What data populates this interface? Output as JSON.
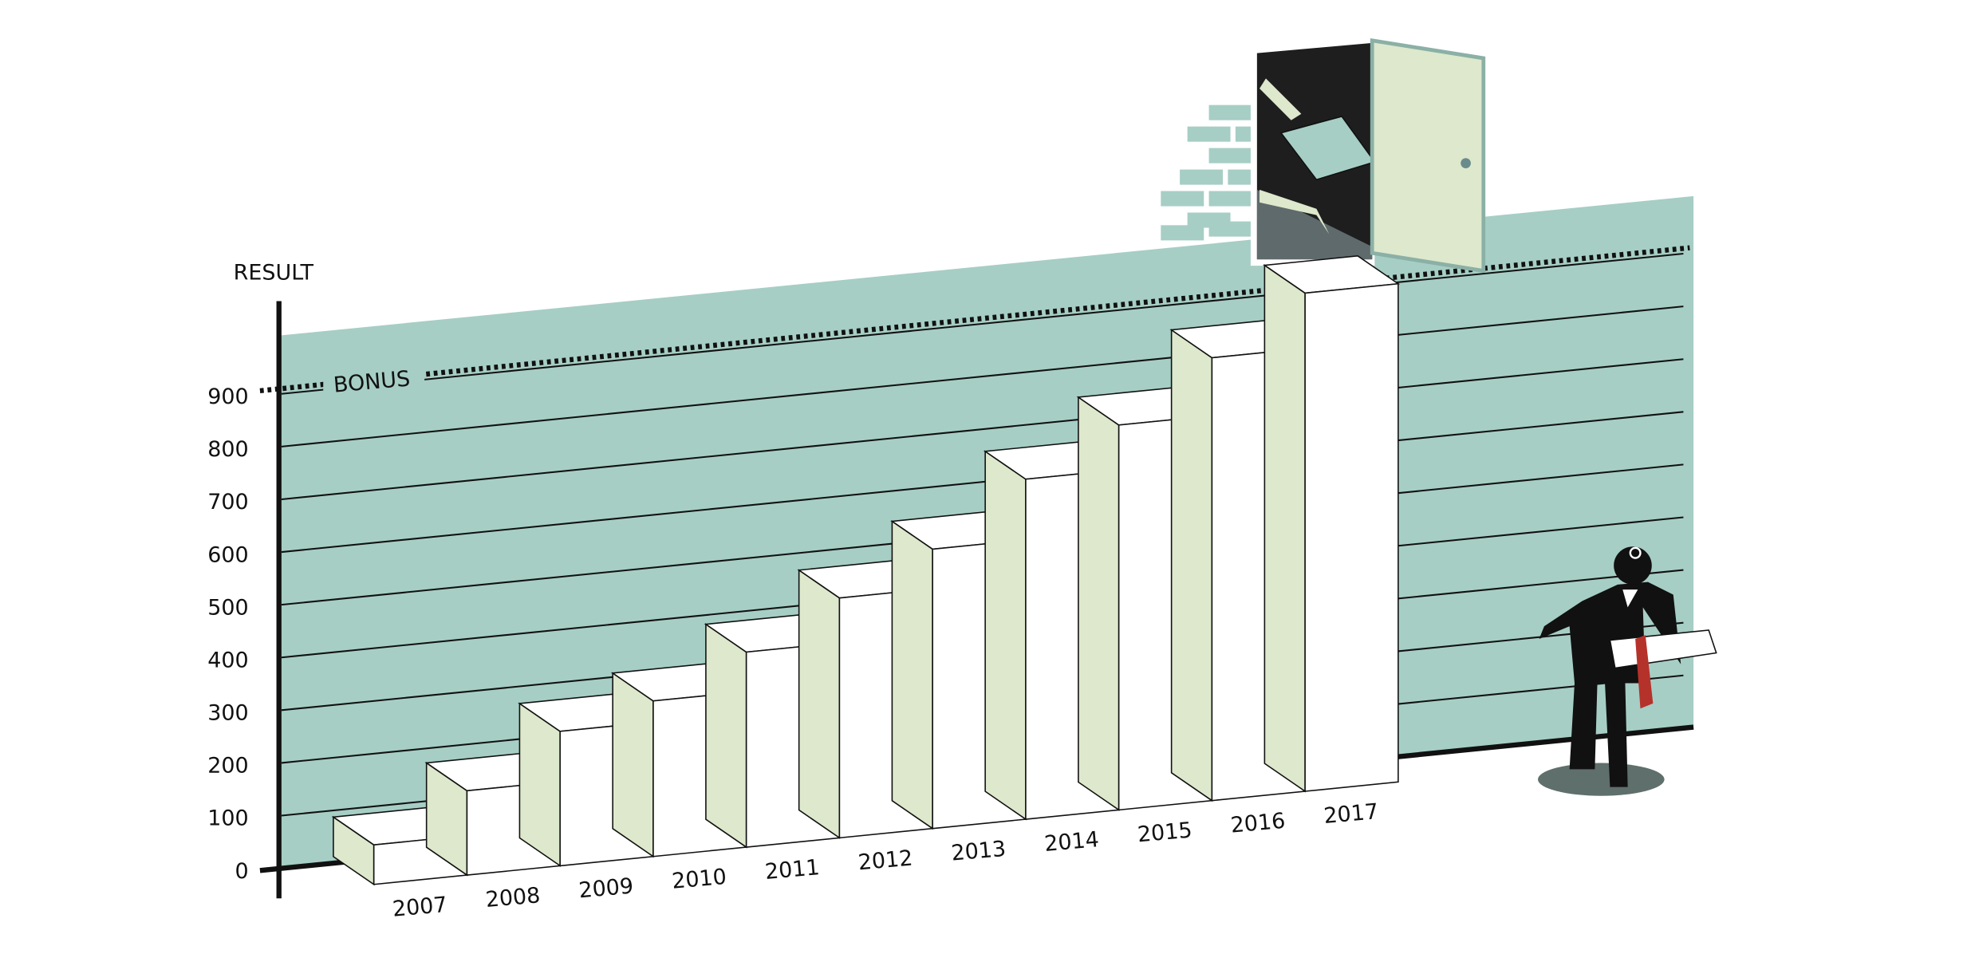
{
  "chart_data": {
    "type": "bar",
    "y_axis_label": "RESULT",
    "categories": [
      "2007",
      "2008",
      "2009",
      "2010",
      "2011",
      "2012",
      "2013",
      "2014",
      "2015",
      "2016",
      "2017"
    ],
    "values": [
      75,
      160,
      255,
      295,
      370,
      455,
      530,
      645,
      730,
      840,
      945
    ],
    "ylim": [
      0,
      1000
    ],
    "yticks": [
      0,
      100,
      200,
      300,
      400,
      500,
      600,
      700,
      800,
      900
    ],
    "grid": true,
    "bonus_label": "BONUS",
    "bonus_level": 910,
    "color": "#ffffff",
    "side_color": "#dde8cc",
    "wall_color": "#a6cec5"
  }
}
